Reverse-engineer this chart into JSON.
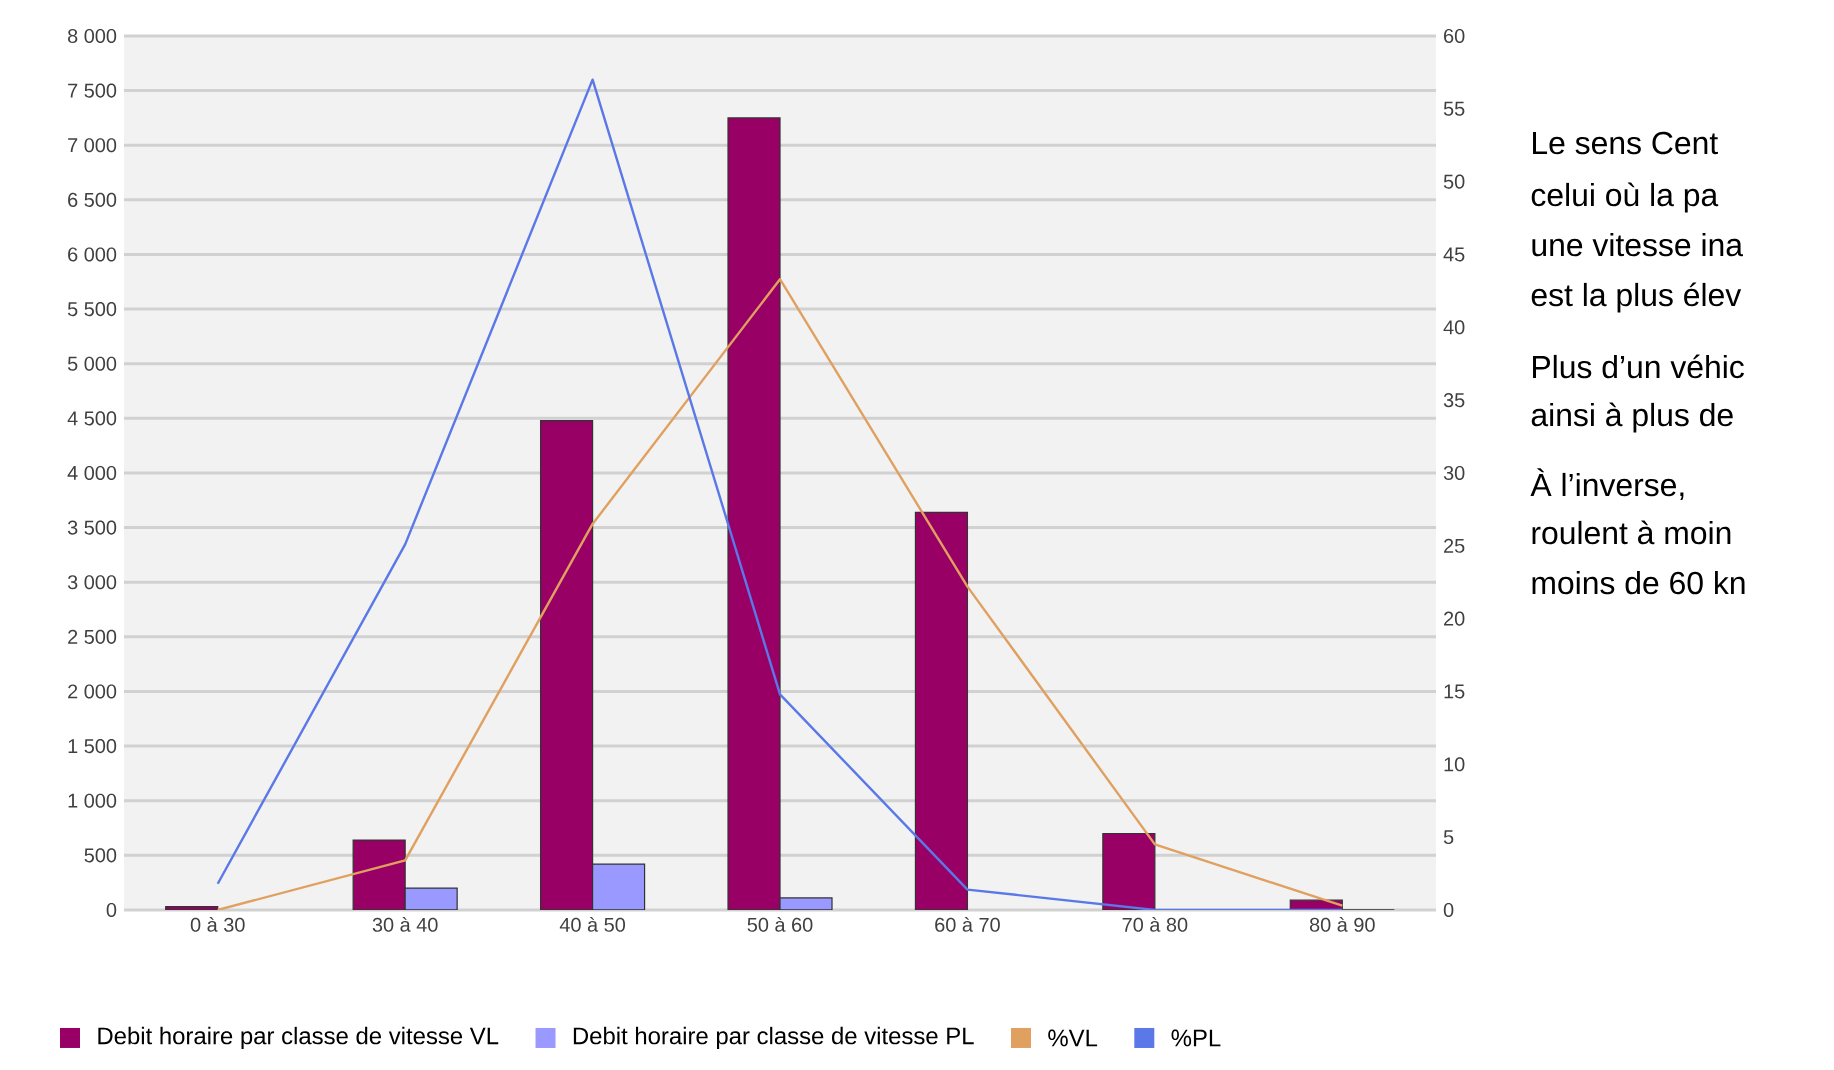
{
  "chart_data": {
    "type": "bar",
    "categories": [
      "0 à 30",
      "30 à 40",
      "40 à 50",
      "50 à 60",
      "60 à 70",
      "70 à 80",
      "80 à 90"
    ],
    "series": [
      {
        "name": "Debit horaire par classe de vitesse VL",
        "color": "#990066",
        "values": [
          30,
          640,
          4480,
          7250,
          3640,
          700,
          90
        ]
      },
      {
        "name": "Debit horaire par classe de vitesse PL",
        "color": "#9999ff",
        "values": [
          null,
          200,
          420,
          110,
          null,
          0,
          0
        ]
      },
      {
        "name": "%VL",
        "type": "line",
        "axis": "y2",
        "color": "#e0a060",
        "values": [
          0,
          3.4,
          26.5,
          43.3,
          22.2,
          4.5,
          0.3
        ]
      },
      {
        "name": "%PL",
        "type": "line",
        "axis": "y2",
        "color": "#5a78e8",
        "values": [
          1.8,
          25.1,
          57.0,
          14.8,
          1.4,
          0,
          0
        ]
      }
    ],
    "ylim": [
      0,
      8000
    ],
    "yticks": [
      0,
      500,
      {
        "value": 1000,
        "label": "1 000"
      },
      {
        "value": 1500,
        "label": "1 500"
      },
      {
        "value": 2000,
        "label": "2 000"
      },
      {
        "value": 2500,
        "label": "2 500"
      },
      {
        "value": 3000,
        "label": "3 000"
      },
      {
        "value": 3500,
        "label": "3 500"
      },
      {
        "value": 4000,
        "label": "4 000"
      },
      {
        "value": 4500,
        "label": "4 500"
      },
      {
        "value": 5000,
        "label": "5 000"
      },
      {
        "value": 5500,
        "label": "5 500"
      },
      {
        "value": 6000,
        "label": "6 000"
      },
      {
        "value": 6500,
        "label": "6 500"
      },
      {
        "value": 7000,
        "label": "7 000"
      },
      {
        "value": 7500,
        "label": "7 500"
      },
      {
        "value": 8000,
        "label": "8 000"
      }
    ],
    "y2lim": [
      0,
      60
    ],
    "y2ticks": [
      0,
      5,
      10,
      15,
      20,
      25,
      30,
      35,
      40,
      45,
      50,
      55,
      60
    ],
    "grid": "y",
    "legend": "bottom",
    "marker": "none",
    "line_style": "solid",
    "annotations": [
      "Le sens Cent",
      "celui où la pa",
      "une vitesse ina",
      "est la plus élev",
      "Plus d’un véhic",
      "ainsi à plus de",
      "À l’inverse,",
      "roulent à moin",
      "moins de 60 kn"
    ]
  }
}
